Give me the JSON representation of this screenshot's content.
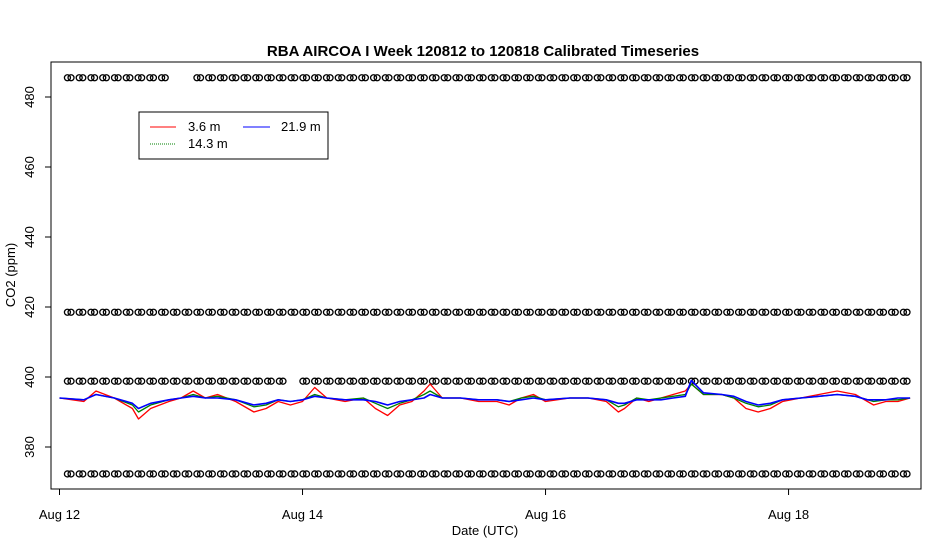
{
  "chart_data": {
    "type": "line",
    "title": "RBA AIRCOA I  Week 120812 to 120818  Calibrated Timeseries",
    "xlabel": "Date (UTC)",
    "ylabel": "CO2 (ppm)",
    "xlim": [
      -0.07,
      7.09
    ],
    "ylim": [
      368,
      490
    ],
    "xticks": [
      {
        "value": 0,
        "label": "Aug 12"
      },
      {
        "value": 2,
        "label": "Aug 14"
      },
      {
        "value": 4,
        "label": "Aug 16"
      },
      {
        "value": 6,
        "label": "Aug 18"
      }
    ],
    "yticks": [
      380,
      400,
      420,
      440,
      460,
      480
    ],
    "grid": false,
    "legend": {
      "position": "top-left",
      "entries": [
        {
          "name": "3.6 m",
          "color": "#ff0000"
        },
        {
          "name": "21.9 m",
          "color": "#0000ff"
        },
        {
          "name": "14.3 m",
          "color": "#008000"
        }
      ]
    },
    "series": [
      {
        "name": "3.6 m",
        "color": "#ff0000",
        "x": [
          0,
          0.2,
          0.3,
          0.45,
          0.6,
          0.65,
          0.75,
          0.9,
          1.0,
          1.1,
          1.2,
          1.3,
          1.45,
          1.6,
          1.7,
          1.8,
          1.9,
          2.0,
          2.1,
          2.2,
          2.35,
          2.5,
          2.6,
          2.7,
          2.8,
          2.9,
          3.0,
          3.05,
          3.15,
          3.3,
          3.45,
          3.6,
          3.7,
          3.8,
          3.9,
          4.0,
          4.2,
          4.35,
          4.5,
          4.6,
          4.65,
          4.75,
          4.85,
          4.95,
          5.05,
          5.15,
          5.2,
          5.3,
          5.45,
          5.55,
          5.65,
          5.75,
          5.85,
          5.95,
          6.1,
          6.25,
          6.4,
          6.55,
          6.65,
          6.7,
          6.8,
          6.9,
          7.0
        ],
        "y": [
          394,
          393,
          396,
          394,
          391,
          388,
          391,
          393,
          394,
          396,
          394,
          395,
          393,
          390,
          391,
          393,
          392,
          393,
          397,
          394,
          393,
          394,
          391,
          389,
          392,
          393,
          396,
          398,
          394,
          394,
          393,
          393,
          392,
          394,
          395,
          393,
          394,
          394,
          393,
          390,
          391,
          394,
          393,
          394,
          395,
          396,
          398,
          395,
          395,
          394,
          391,
          390,
          391,
          393,
          394,
          395,
          396,
          395,
          393,
          392,
          393,
          393,
          394
        ]
      },
      {
        "name": "14.3 m",
        "color": "#008000",
        "x": [
          0,
          0.2,
          0.3,
          0.45,
          0.6,
          0.65,
          0.75,
          0.9,
          1.0,
          1.1,
          1.2,
          1.3,
          1.45,
          1.6,
          1.7,
          1.8,
          1.9,
          2.0,
          2.1,
          2.2,
          2.35,
          2.5,
          2.6,
          2.7,
          2.8,
          2.9,
          3.0,
          3.05,
          3.15,
          3.3,
          3.45,
          3.6,
          3.7,
          3.8,
          3.9,
          4.0,
          4.2,
          4.35,
          4.5,
          4.6,
          4.65,
          4.75,
          4.85,
          4.95,
          5.05,
          5.15,
          5.2,
          5.3,
          5.45,
          5.55,
          5.65,
          5.75,
          5.85,
          5.95,
          6.1,
          6.25,
          6.4,
          6.55,
          6.65,
          6.7,
          6.8,
          6.9,
          7.0
        ],
        "y": [
          394,
          393.5,
          395,
          394,
          392,
          390,
          392,
          393.5,
          394,
          395,
          394,
          394.5,
          393.5,
          391.5,
          392,
          393.5,
          393,
          393.5,
          395,
          394,
          393.5,
          394,
          392.5,
          391,
          392.5,
          393.5,
          395,
          396,
          394,
          394,
          393.5,
          393.5,
          393,
          394,
          394.5,
          393.5,
          394,
          394,
          393.5,
          391.5,
          392,
          394,
          393.5,
          394,
          394.5,
          395,
          398,
          395,
          395,
          394,
          392.5,
          391.5,
          392,
          393.5,
          394,
          394.5,
          395,
          394.5,
          393.5,
          393,
          393.5,
          393.5,
          394
        ]
      },
      {
        "name": "21.9 m",
        "color": "#0000ff",
        "x": [
          0,
          0.2,
          0.3,
          0.45,
          0.6,
          0.65,
          0.75,
          0.9,
          1.0,
          1.1,
          1.2,
          1.3,
          1.45,
          1.6,
          1.7,
          1.8,
          1.9,
          2.0,
          2.1,
          2.2,
          2.35,
          2.5,
          2.6,
          2.7,
          2.8,
          2.9,
          3.0,
          3.05,
          3.15,
          3.3,
          3.45,
          3.6,
          3.7,
          3.8,
          3.9,
          4.0,
          4.2,
          4.35,
          4.5,
          4.6,
          4.65,
          4.75,
          4.85,
          4.95,
          5.05,
          5.15,
          5.2,
          5.3,
          5.45,
          5.55,
          5.65,
          5.75,
          5.85,
          5.95,
          6.1,
          6.25,
          6.4,
          6.55,
          6.65,
          6.7,
          6.8,
          6.9,
          7.0
        ],
        "y": [
          394,
          393.5,
          395,
          394,
          392.5,
          391,
          392.5,
          393.5,
          394,
          394.5,
          394,
          394,
          393.5,
          392,
          392.5,
          393.5,
          393,
          393.5,
          394.5,
          394,
          393.5,
          393.5,
          393,
          392,
          393,
          393.5,
          394,
          395,
          394,
          394,
          393.5,
          393.5,
          393,
          393.5,
          394,
          393.5,
          394,
          394,
          393.5,
          392.5,
          392.5,
          393.5,
          393.5,
          393.5,
          394,
          394.5,
          399,
          395.5,
          395,
          394.5,
          393,
          392,
          392.5,
          393.5,
          394,
          394.5,
          395,
          394.5,
          393.5,
          393.5,
          393.5,
          394,
          394
        ]
      }
    ],
    "calibration_markers": {
      "symbol": "o",
      "rows": [
        485.5,
        418.5,
        398.8,
        372.3
      ]
    }
  }
}
